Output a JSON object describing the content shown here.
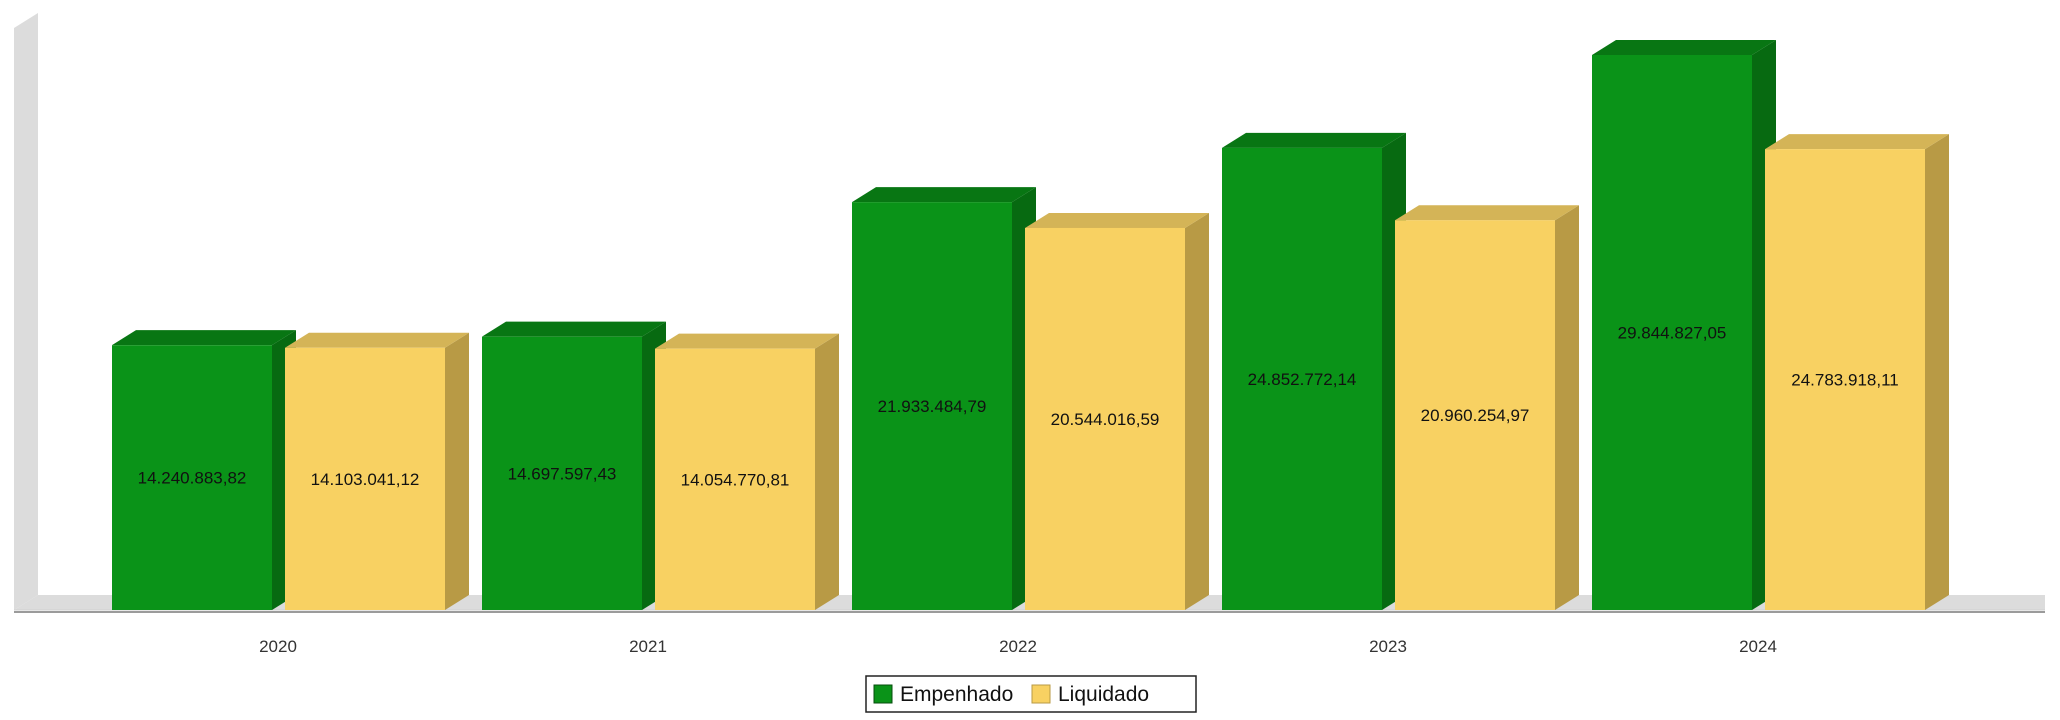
{
  "chart_data": {
    "type": "bar",
    "style": "3d",
    "title": "",
    "xlabel": "",
    "ylabel": "",
    "categories": [
      "2020",
      "2021",
      "2022",
      "2023",
      "2024"
    ],
    "series": [
      {
        "name": "Empenhado",
        "values": [
          14240883.82,
          14697597.43,
          21933484.79,
          24852772.14,
          29844827.05
        ],
        "labels": [
          "14.240.883,82",
          "14.697.597,43",
          "21.933.484,79",
          "24.852.772,14",
          "29.844.827,05"
        ],
        "color": "#0a9318"
      },
      {
        "name": "Liquidado",
        "values": [
          14103041.12,
          14054770.81,
          20544016.59,
          20960254.97,
          24783918.11
        ],
        "labels": [
          "14.103.041,12",
          "14.054.770,81",
          "20.544.016,59",
          "20.960.254,97",
          "24.783.918,11"
        ],
        "color": "#f8d162"
      }
    ],
    "ylim": [
      0,
      29844827.05
    ],
    "grid": false,
    "y_axis_labels": false,
    "legend_position": "bottom-center"
  }
}
